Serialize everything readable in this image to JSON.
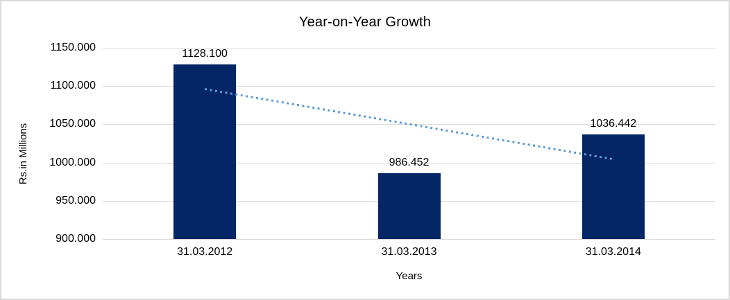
{
  "chart_data": {
    "type": "bar",
    "title": "Year-on-Year Growth",
    "xlabel": "Years",
    "ylabel": "Rs.in Millions",
    "categories": [
      "31.03.2012",
      "31.03.2013",
      "31.03.2014"
    ],
    "values": [
      1128.1,
      986.452,
      1036.442
    ],
    "data_labels": [
      "1128.100",
      "986.452",
      "1036.442"
    ],
    "yticks": [
      "1150.000",
      "1100.000",
      "1050.000",
      "1000.000",
      "950.000",
      "900.000"
    ],
    "ytick_values": [
      1150,
      1100,
      1050,
      1000,
      950,
      900
    ],
    "ylim": [
      900,
      1150
    ],
    "grid": true,
    "legend": false,
    "bar_color": "#042666",
    "gridline_color": "#d9d9d9",
    "text_color": "#000000",
    "trendline": {
      "type": "linear",
      "style": "dotted",
      "color": "#5b9bd5",
      "start_value": 1096.2,
      "end_value": 1004.5
    }
  }
}
